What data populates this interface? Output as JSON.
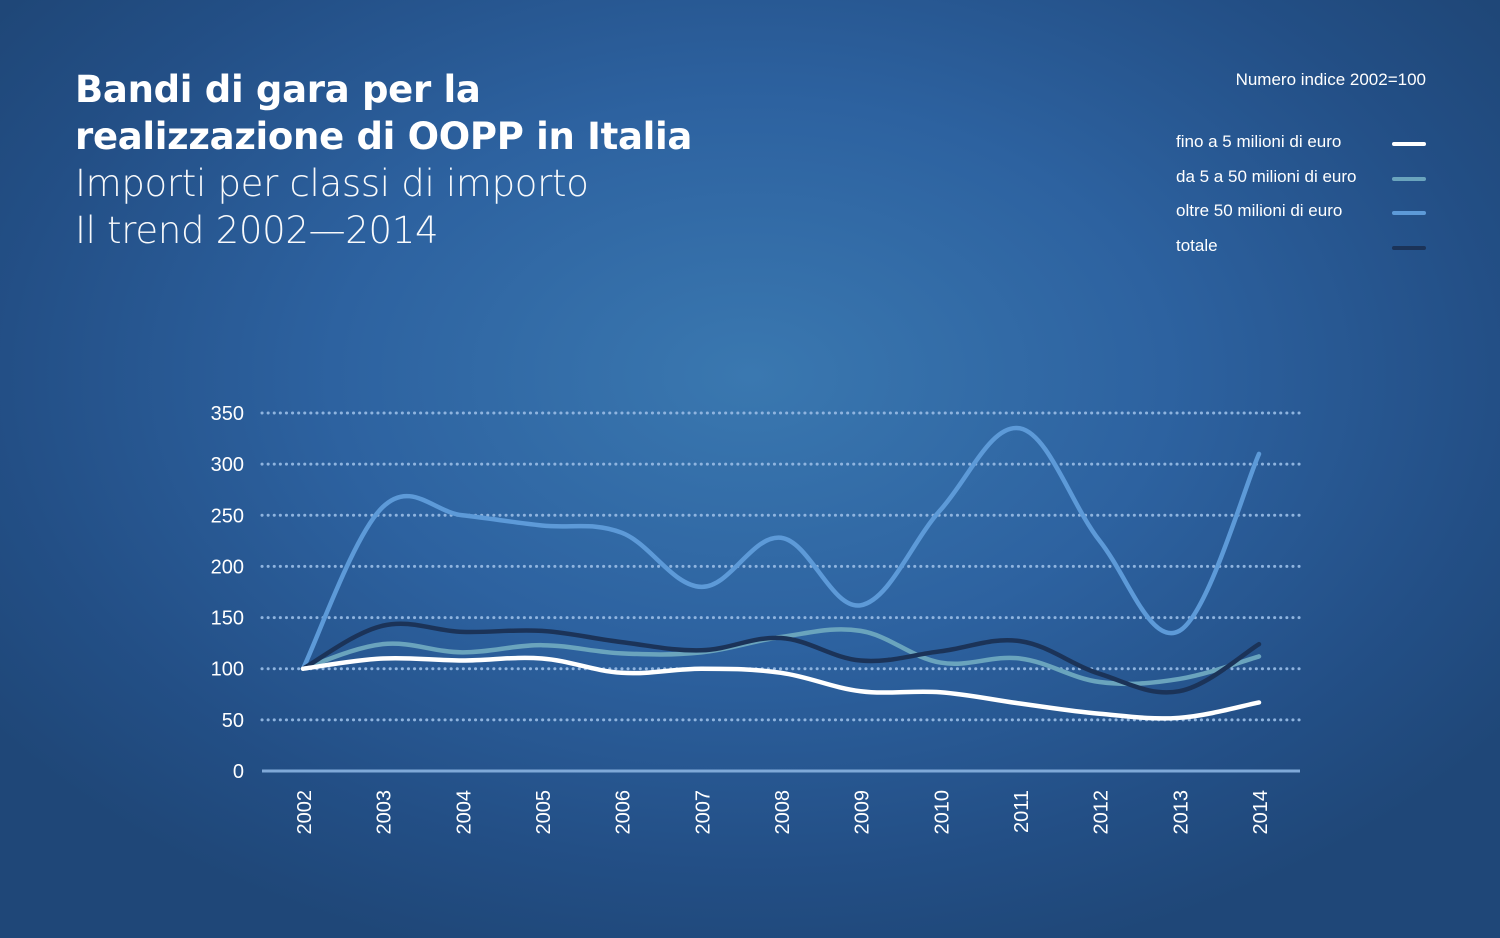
{
  "title": {
    "line1": "Bandi di gara per la",
    "line2": "realizzazione di OOPP in Italia",
    "line3": "Importi per classi di importo",
    "line4": "Il trend 2002—2014"
  },
  "index_note": "Numero indice 2002=100",
  "legend": [
    {
      "label": "fino a 5 milioni di euro",
      "color": "#ffffff"
    },
    {
      "label": "da 5 a 50 milioni di euro",
      "color": "#6aa4bd"
    },
    {
      "label": "oltre 50 milioni di euro",
      "color": "#5d9ad8"
    },
    {
      "label": "totale",
      "color": "#1b3358"
    }
  ],
  "chart_data": {
    "type": "line",
    "x": [
      "2002",
      "2003",
      "2004",
      "2005",
      "2006",
      "2007",
      "2008",
      "2009",
      "2010",
      "2011",
      "2012",
      "2013",
      "2014"
    ],
    "ylim": [
      0,
      350
    ],
    "yticks": [
      0,
      50,
      100,
      150,
      200,
      250,
      300,
      350
    ],
    "grid": true,
    "legend_position": "top-right",
    "series": [
      {
        "name": "fino a 5 milioni di euro",
        "color": "#ffffff",
        "values": [
          100,
          110,
          108,
          110,
          96,
          100,
          96,
          78,
          77,
          66,
          56,
          52,
          67
        ]
      },
      {
        "name": "da 5 a 50 milioni di euro",
        "color": "#6aa4bd",
        "values": [
          100,
          124,
          116,
          123,
          115,
          116,
          131,
          137,
          106,
          110,
          87,
          90,
          112
        ]
      },
      {
        "name": "oltre 50 milioni di euro",
        "color": "#5d9ad8",
        "values": [
          100,
          258,
          250,
          240,
          233,
          180,
          228,
          162,
          255,
          335,
          225,
          137,
          310
        ]
      },
      {
        "name": "totale",
        "color": "#1b3358",
        "values": [
          100,
          142,
          136,
          137,
          126,
          118,
          130,
          108,
          117,
          127,
          95,
          78,
          124
        ]
      }
    ]
  }
}
